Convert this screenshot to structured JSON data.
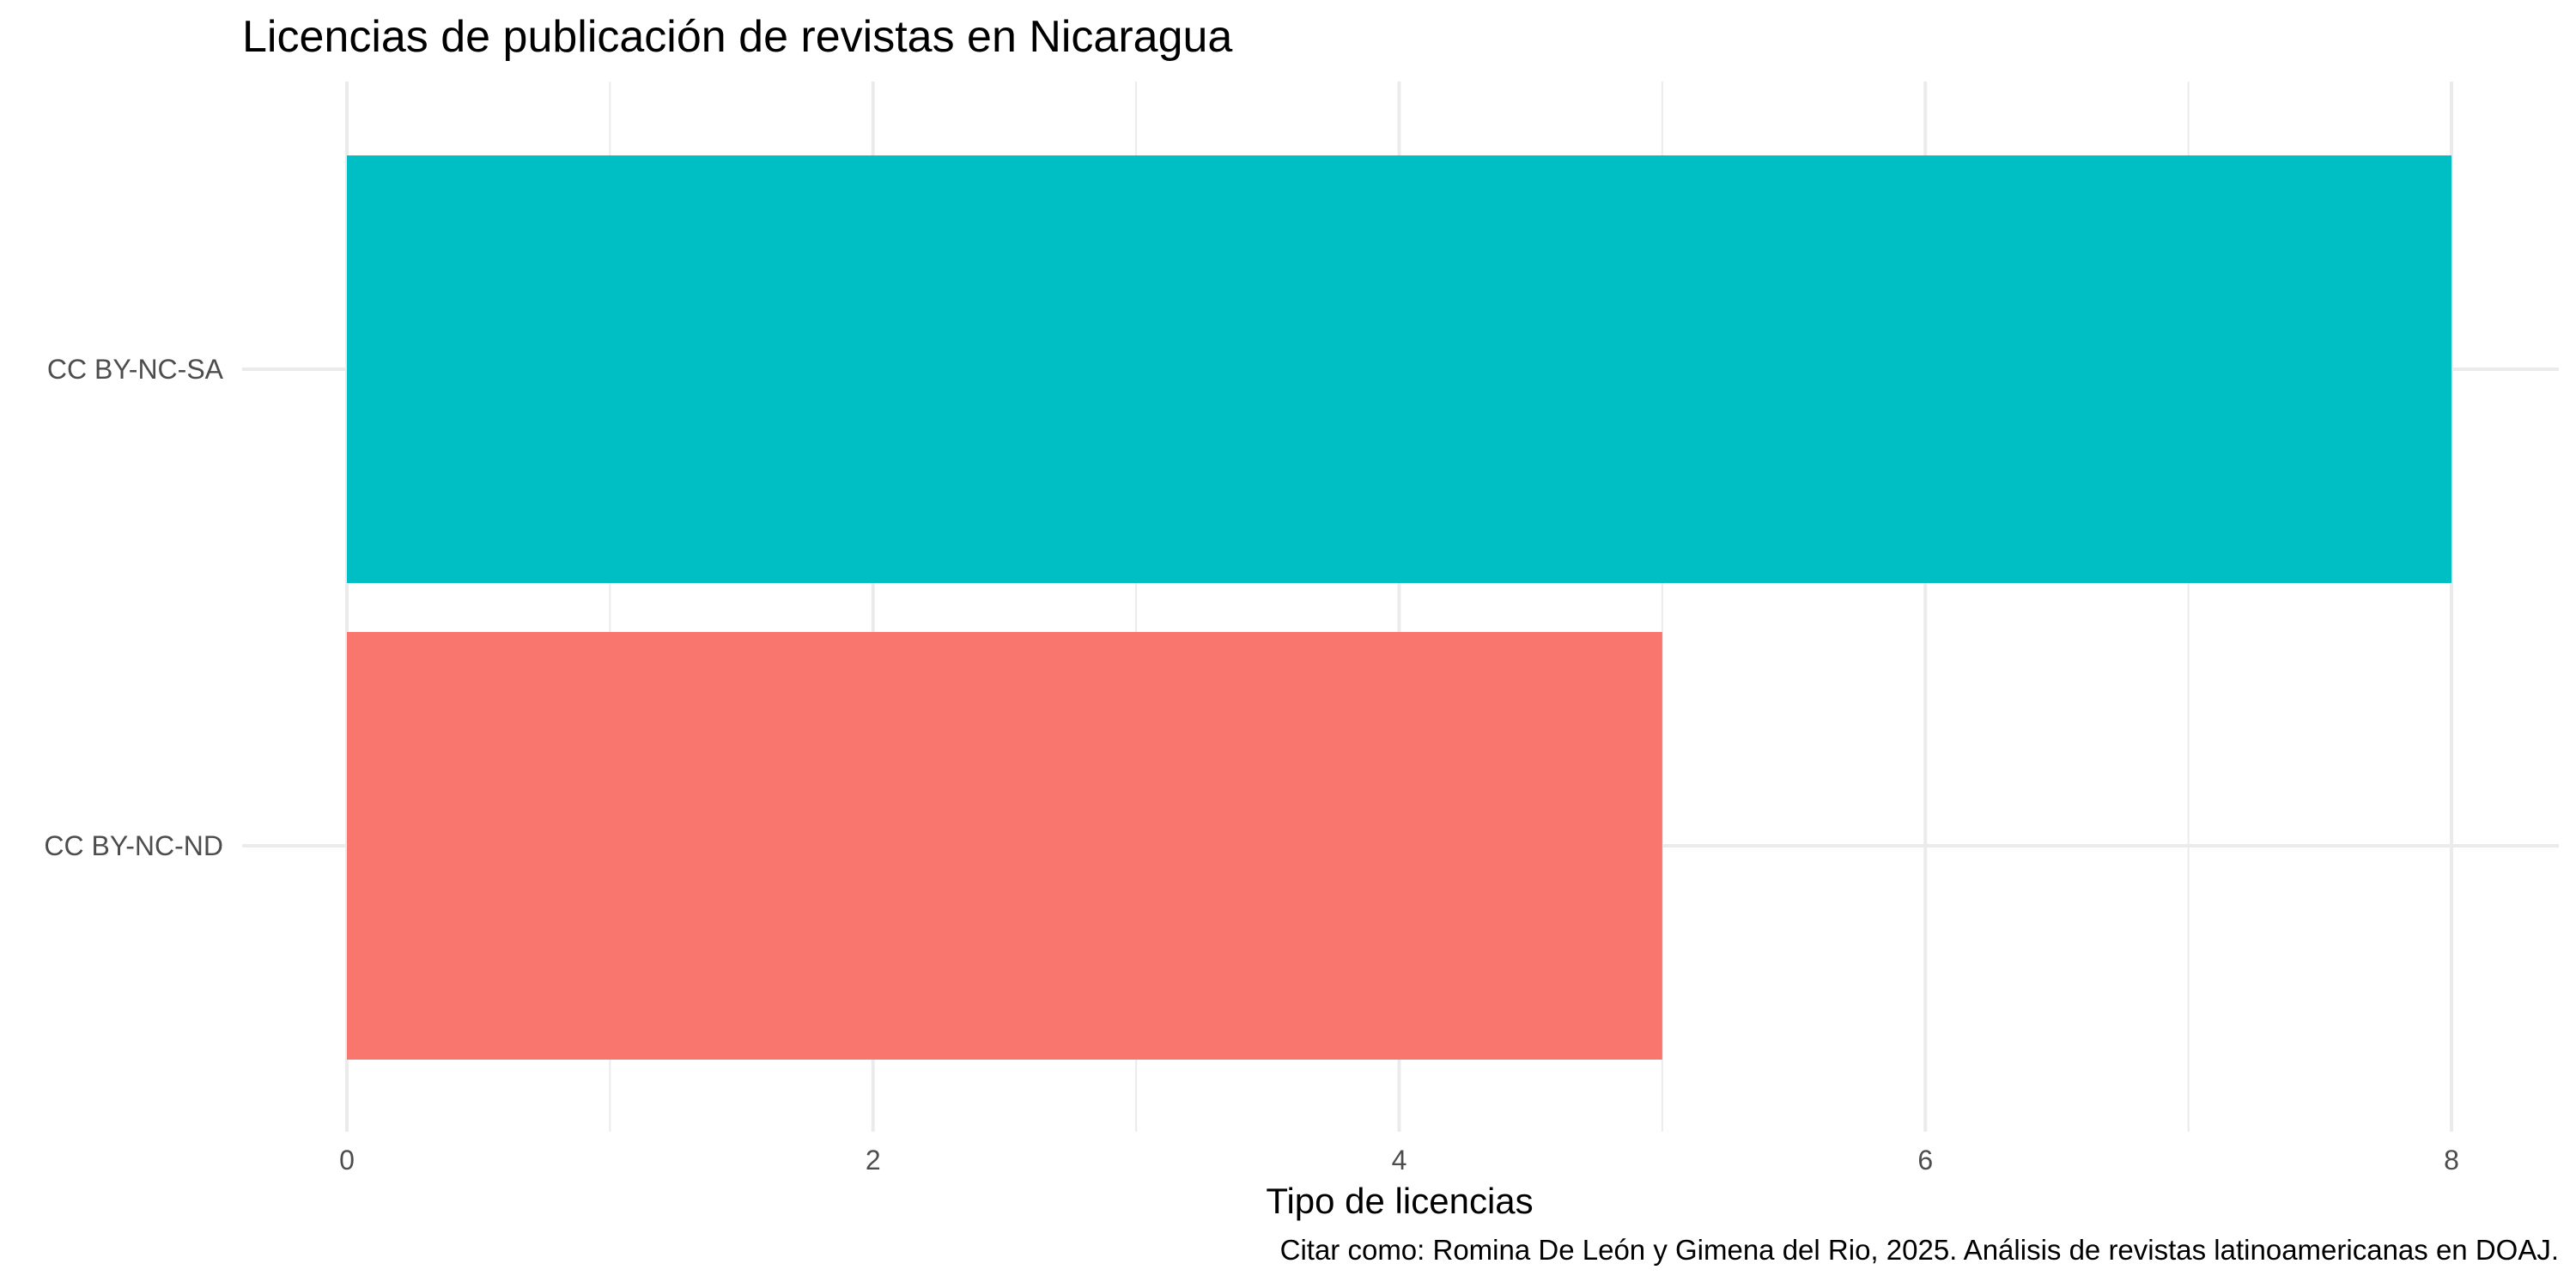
{
  "chart_data": {
    "type": "bar",
    "orientation": "horizontal",
    "title": "Licencias de publicación de revistas en Nicaragua",
    "xlabel": "Tipo de licencias",
    "ylabel": "",
    "caption": "Citar como: Romina De León y Gimena del Rio, 2025. Análisis de revistas latinoamericanas en DOAJ.",
    "categories": [
      "CC BY-NC-SA",
      "CC BY-NC-ND"
    ],
    "values": [
      8,
      5
    ],
    "colors": [
      "#00BFC4",
      "#F8766D"
    ],
    "xlim": [
      0,
      8
    ],
    "x_ticks": [
      "0",
      "2",
      "4",
      "6",
      "8"
    ],
    "grid": true,
    "legend": "none"
  }
}
